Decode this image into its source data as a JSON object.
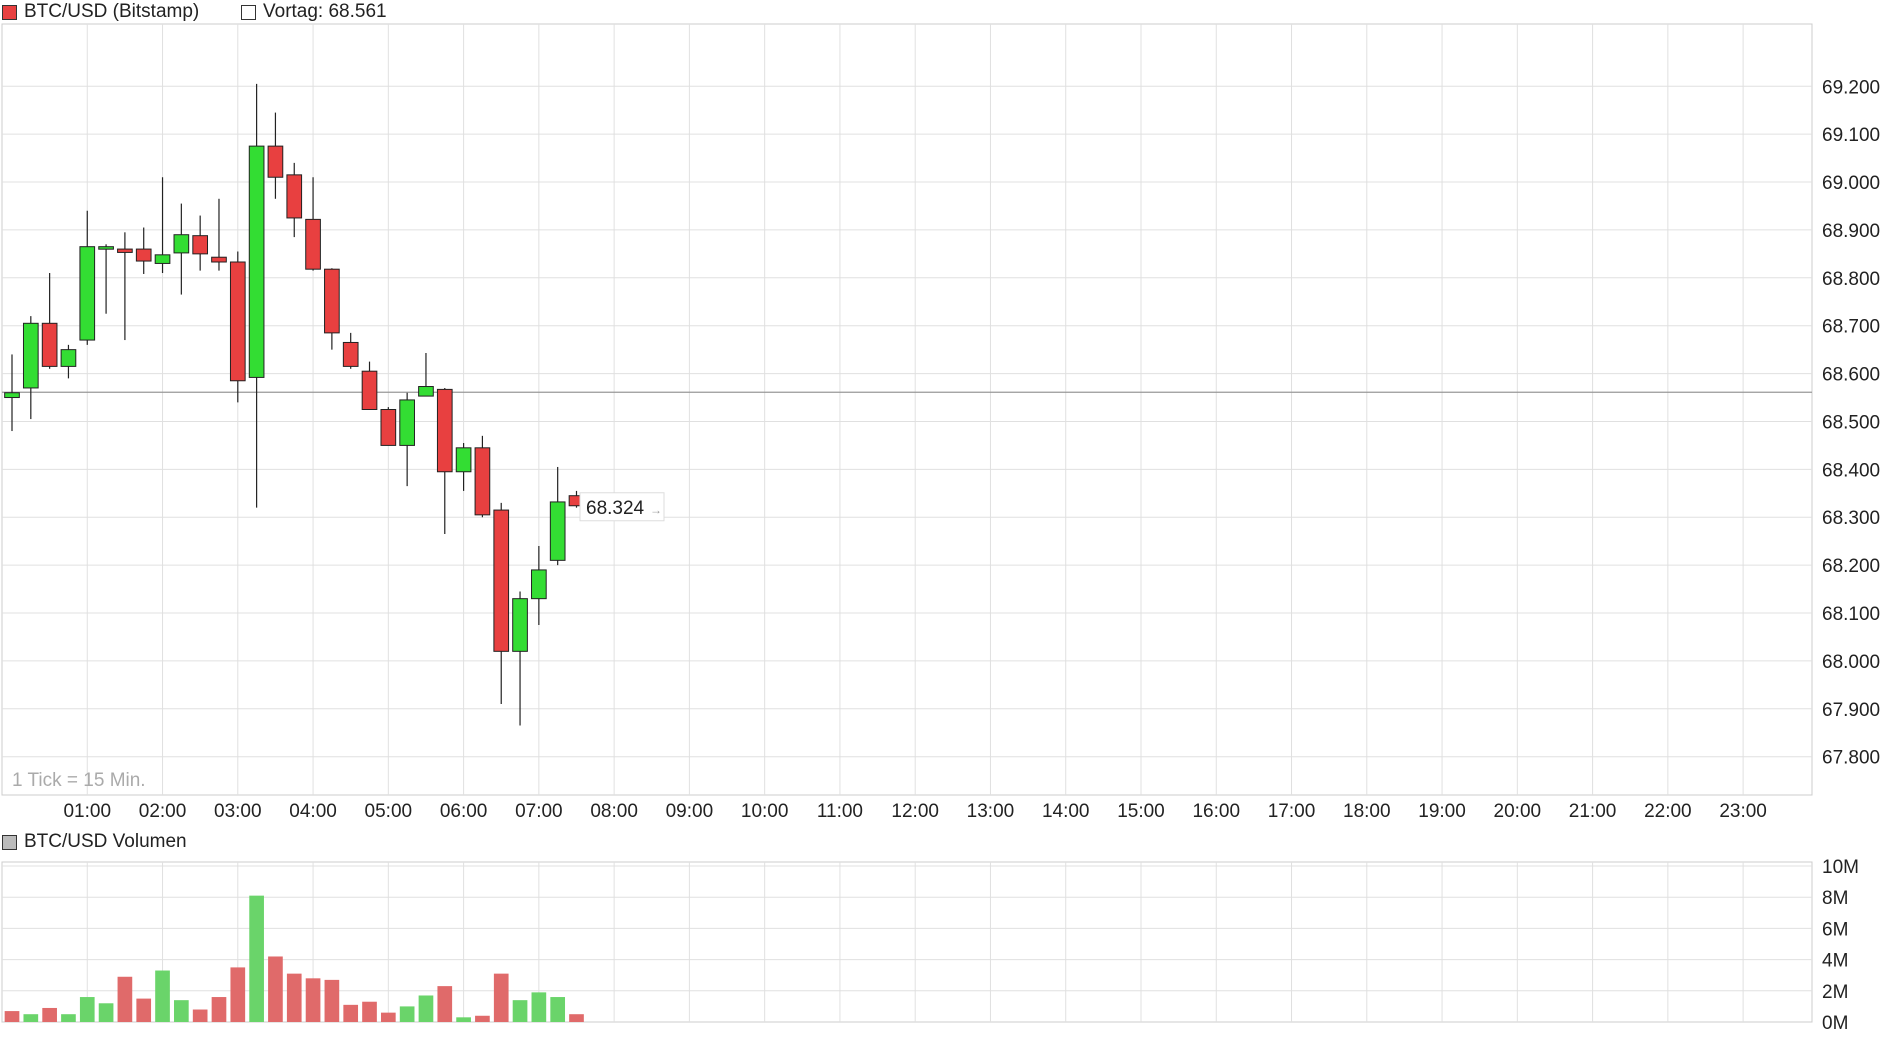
{
  "price_legend": {
    "label": "BTC/USD (Bitstamp)",
    "color": "#e84040"
  },
  "prev_legend": {
    "label": "Vortag: 68.561"
  },
  "tick_note": "1 Tick = 15 Min.",
  "last_price_label": "68.324",
  "volume_legend": {
    "label": "BTC/USD Volumen",
    "color": "#bbbbbb"
  },
  "colors": {
    "up": "#33dd33",
    "down": "#e84040",
    "vol_up": "#6ad46a",
    "vol_down": "#e06a6a",
    "grid": "#e0e0e0",
    "prev_line": "#999999"
  },
  "chart_data": [
    {
      "type": "candlestick",
      "title": "BTC/USD (Bitstamp)",
      "x_unit": "hours",
      "xlim": [
        0,
        24
      ],
      "x_ticks": [
        "01:00",
        "02:00",
        "03:00",
        "04:00",
        "05:00",
        "06:00",
        "07:00",
        "08:00",
        "09:00",
        "10:00",
        "11:00",
        "12:00",
        "13:00",
        "14:00",
        "15:00",
        "16:00",
        "17:00",
        "18:00",
        "19:00",
        "20:00",
        "21:00",
        "22:00",
        "23:00"
      ],
      "y_ticks": [
        "69.200",
        "69.100",
        "69.000",
        "68.900",
        "68.800",
        "68.700",
        "68.600",
        "68.500",
        "68.400",
        "68.300",
        "68.200",
        "68.100",
        "68.000",
        "67.900",
        "67.800"
      ],
      "ylim": [
        67720,
        69330
      ],
      "reference_line": 68561,
      "grid": true,
      "candles": [
        {
          "t": 0.0,
          "open": 68550,
          "high": 68640,
          "low": 68480,
          "close": 68560
        },
        {
          "t": 0.25,
          "open": 68570,
          "high": 68720,
          "low": 68505,
          "close": 68705
        },
        {
          "t": 0.5,
          "open": 68705,
          "high": 68810,
          "low": 68610,
          "close": 68615
        },
        {
          "t": 0.75,
          "open": 68615,
          "high": 68660,
          "low": 68590,
          "close": 68650
        },
        {
          "t": 1.0,
          "open": 68670,
          "high": 68940,
          "low": 68660,
          "close": 68865
        },
        {
          "t": 1.25,
          "open": 68865,
          "high": 68870,
          "low": 68725,
          "close": 68865
        },
        {
          "t": 1.5,
          "open": 68860,
          "high": 68895,
          "low": 68670,
          "close": 68853
        },
        {
          "t": 1.75,
          "open": 68860,
          "high": 68905,
          "low": 68808,
          "close": 68835
        },
        {
          "t": 2.0,
          "open": 68830,
          "high": 69010,
          "low": 68810,
          "close": 68848
        },
        {
          "t": 2.25,
          "open": 68852,
          "high": 68955,
          "low": 68765,
          "close": 68890
        },
        {
          "t": 2.5,
          "open": 68888,
          "high": 68930,
          "low": 68815,
          "close": 68850
        },
        {
          "t": 2.75,
          "open": 68843,
          "high": 68965,
          "low": 68815,
          "close": 68833
        },
        {
          "t": 3.0,
          "open": 68833,
          "high": 68855,
          "low": 68540,
          "close": 68585
        },
        {
          "t": 3.25,
          "open": 68592,
          "high": 69205,
          "low": 68320,
          "close": 69075
        },
        {
          "t": 3.5,
          "open": 69075,
          "high": 69145,
          "low": 68965,
          "close": 69010
        },
        {
          "t": 3.75,
          "open": 69015,
          "high": 69040,
          "low": 68885,
          "close": 68925
        },
        {
          "t": 4.0,
          "open": 68922,
          "high": 69010,
          "low": 68815,
          "close": 68818
        },
        {
          "t": 4.25,
          "open": 68818,
          "high": 68820,
          "low": 68650,
          "close": 68685
        },
        {
          "t": 4.5,
          "open": 68665,
          "high": 68685,
          "low": 68610,
          "close": 68615
        },
        {
          "t": 4.75,
          "open": 68605,
          "high": 68625,
          "low": 68525,
          "close": 68525
        },
        {
          "t": 5.0,
          "open": 68525,
          "high": 68530,
          "low": 68450,
          "close": 68450
        },
        {
          "t": 5.25,
          "open": 68450,
          "high": 68560,
          "low": 68365,
          "close": 68545
        },
        {
          "t": 5.5,
          "open": 68553,
          "high": 68643,
          "low": 68553,
          "close": 68573
        },
        {
          "t": 5.75,
          "open": 68567,
          "high": 68570,
          "low": 68265,
          "close": 68395
        },
        {
          "t": 6.0,
          "open": 68395,
          "high": 68455,
          "low": 68355,
          "close": 68445
        },
        {
          "t": 6.25,
          "open": 68445,
          "high": 68470,
          "low": 68300,
          "close": 68305
        },
        {
          "t": 6.5,
          "open": 68315,
          "high": 68330,
          "low": 67910,
          "close": 68020
        },
        {
          "t": 6.75,
          "open": 68020,
          "high": 68145,
          "low": 67865,
          "close": 68130
        },
        {
          "t": 7.0,
          "open": 68130,
          "high": 68240,
          "low": 68075,
          "close": 68190
        },
        {
          "t": 7.25,
          "open": 68210,
          "high": 68405,
          "low": 68200,
          "close": 68332
        },
        {
          "t": 7.5,
          "open": 68345,
          "high": 68355,
          "low": 68320,
          "close": 68324
        }
      ]
    },
    {
      "type": "bar",
      "title": "BTC/USD Volumen",
      "y_ticks": [
        "10M",
        "8M",
        "6M",
        "4M",
        "2M",
        "0M"
      ],
      "ylim": [
        0,
        10
      ],
      "y_unit": "M",
      "x": [
        0.0,
        0.25,
        0.5,
        0.75,
        1.0,
        1.25,
        1.5,
        1.75,
        2.0,
        2.25,
        2.5,
        2.75,
        3.0,
        3.25,
        3.5,
        3.75,
        4.0,
        4.25,
        4.5,
        4.75,
        5.0,
        5.25,
        5.5,
        5.75,
        6.0,
        6.25,
        6.5,
        6.75,
        7.0,
        7.25,
        7.5
      ],
      "values": [
        0.7,
        0.5,
        0.9,
        0.5,
        1.6,
        1.2,
        2.9,
        1.5,
        3.3,
        1.4,
        0.8,
        1.6,
        3.5,
        8.1,
        4.2,
        3.1,
        2.8,
        2.7,
        1.1,
        1.3,
        0.6,
        1.0,
        1.7,
        2.3,
        0.3,
        0.4,
        3.1,
        1.4,
        1.9,
        1.6,
        0.5
      ],
      "directions": [
        "down",
        "up",
        "down",
        "up",
        "up",
        "up",
        "down",
        "down",
        "up",
        "up",
        "down",
        "down",
        "down",
        "up",
        "down",
        "down",
        "down",
        "down",
        "down",
        "down",
        "down",
        "up",
        "up",
        "down",
        "up",
        "down",
        "down",
        "up",
        "up",
        "up",
        "down"
      ]
    }
  ]
}
